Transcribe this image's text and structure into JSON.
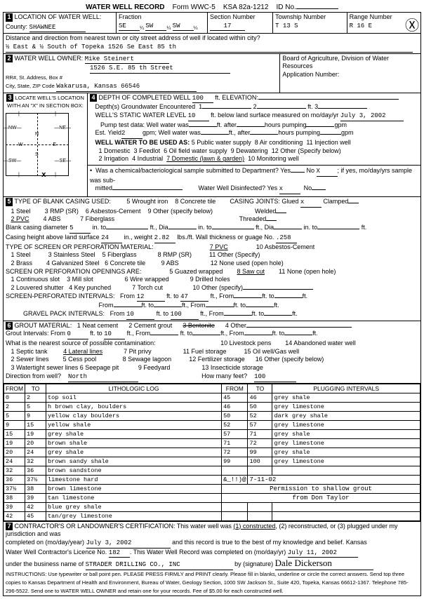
{
  "header": {
    "title": "WATER WELL RECORD",
    "form": "Form WWC-5",
    "ksa": "KSA 82a-1212",
    "idno": "ID No."
  },
  "loc": {
    "label": "LOCATION OF WATER WELL:",
    "county_lbl": "County:",
    "county": "SHAWNEE",
    "fraction_lbl": "Fraction",
    "fr1": "SE",
    "fr2": "SW",
    "fr3": "SW",
    "section_lbl": "Section Number",
    "section": "17",
    "township_lbl": "Township Number",
    "township": "T 13 S",
    "range_lbl": "Range Number",
    "range": "R 16 E",
    "dist_lbl": "Distance and direction from nearest town or city street address of well if located within city?",
    "dist": "½ East & ½ South of Topeka   1526  Se East  85 th"
  },
  "owner": {
    "label": "WATER WELL OWNER:",
    "name": "Mike Steinert",
    "addr1": "1526 S.E. 85 th Street",
    "addr2": "Wakarusa, Kansas  66546",
    "rr_lbl": "RR#, St. Address, Box #",
    "city_lbl": "City, State, ZIP Code",
    "board_lbl": "Board of Agriculture, Division of Water Resources",
    "app_lbl": "Application Number:"
  },
  "locate": {
    "label": "LOCATE WELL'S LOCATION WITH AN \"X\" IN SECTION BOX:"
  },
  "depth": {
    "label": "DEPTH OF COMPLETED WELL",
    "val": "100",
    "elev_lbl": "ft. ELEVATION:",
    "groundwater": "Depth(s) Groundwater Encountered",
    "g1": "1",
    "g2": "2",
    "g3": "ft. 3",
    "static_lbl": "WELL'S STATIC WATER LEVEL",
    "static": "10",
    "static_after": "ft. below land surface measured on mo/day/yr",
    "static_date": "July 3, 2002",
    "pump_lbl": "Pump test data: Well water was",
    "pump_after": "ft. after",
    "pump_hours": "hours pumping",
    "pump_gpm": "gpm",
    "est_lbl": "Est. Yield",
    "est": "2",
    "est_after": "gpm; Well water was",
    "est_ft": "ft., after",
    "est_hours": "hours pumping",
    "est_gpm": "gpm",
    "used_lbl": "WELL WATER TO BE USED AS:",
    "u1": "1 Domestic",
    "u3": "3 Feedlot",
    "u5": "5 Public water supply",
    "u8": "8 Air conditioning",
    "u11": "11 Injection well",
    "u2": "2 Irrigation",
    "u4": "4 Industrial",
    "u6": "6 Oil field water supply",
    "u9": "9 Dewatering",
    "u12": "12 Other (Specify below)",
    "u7": "7 Domestic (lawn & garden)",
    "u10": "10 Monitoring well",
    "chem_lbl": "Was a chemical/bacteriological sample submitted to Department? Yes",
    "chem_no": "No",
    "chem_x": "X",
    "chem_after": "; if yes, mo/day/yrs sample was sub-",
    "chem_mitted": "mitted",
    "disinfect": "Water Well Disinfected?  Yes",
    "dis_x": "x",
    "dis_no": "No"
  },
  "casing": {
    "label": "TYPE OF BLANK CASING USED:",
    "c1": "1 Steel",
    "c2": "2 PVC",
    "c3": "3 RMP (SR)",
    "c4": "4 ABS",
    "c5": "5 Wrought iron",
    "c6": "6 Asbestos-Cement",
    "c7": "7 Fiberglass",
    "c8": "8 Concrete tile",
    "c9": "9 Other (specify below)",
    "joints_lbl": "CASING JOINTS: Glued",
    "jx": "x",
    "jclamped": "Clamped",
    "jwelded": "Welded",
    "jthreaded": "Threaded",
    "dia_lbl": "Blank casing diameter",
    "dia": "5",
    "dia_in": "in. to",
    "dia_ft": "ft., Dia",
    "dia_into": "in. to",
    "dia_ft2": "ft.",
    "height_lbl": "Casing height above land surface",
    "height": "24",
    "height_wt": "in., weight",
    "wt": "2.82",
    "wt_lbs": "lbs./ft. Wall thickness or guage No.",
    "guage": ".258",
    "screen_lbl": "TYPE OF SCREEN OR PERFORATION MATERIAL:",
    "s1": "1 Steel",
    "s2": "2 Brass",
    "s3": "3 Stainless Steel",
    "s4": "4 Galvanized Steel",
    "s5": "5 Fiberglass",
    "s6": "6 Concrete tile",
    "s7": "7 PVC",
    "s8": "8 RMP (SR)",
    "s9": "9 ABS",
    "s10": "10 Asbestos-Cement",
    "s11": "11 Other (Specify)",
    "s12": "12 None used (open hole)",
    "open_lbl": "SCREEN OR PERFORATION OPENINGS ARE:",
    "o1": "1 Continuous slot",
    "o2": "2 Louvered shutter",
    "o3": "3 Mill slot",
    "o4": "4 Key punched",
    "o5": "5 Guazed wrapped",
    "o6": "6 Wire wrapped",
    "o7": "7 Torch cut",
    "o8": "8 Saw cut",
    "o9": "9 Drilled holes",
    "o10": "10 Other (specify)",
    "o11": "11 None (open hole)",
    "perf_lbl": "SCREEN-PERFORATED INTERVALS:",
    "from_lbl": "From",
    "to_lbl": "to",
    "ft_lbl": "ft., From",
    "ft_to": "ft.  to",
    "ft_end": "ft.",
    "perf_from": "12",
    "perf_to": "47",
    "gravel_lbl": "GRAVEL PACK INTERVALS:",
    "gravel_from": "10",
    "gravel_to": "100"
  },
  "grout": {
    "label": "GROUT MATERIAL:",
    "g1": "1 Neat cement",
    "g2": "2 Cement grout",
    "g3": "3 Bentonite",
    "g4": "4 Other",
    "int_lbl": "Grout Intervals:   From",
    "int_from": "0",
    "int_to": "10",
    "int_ft": "ft. to",
    "int_from2": "ft., From",
    "int_ft2": "ft.",
    "contam_lbl": "What is the nearest source of possible contamination:",
    "p1": "1 Septic tank",
    "p2": "2 Sewer lines",
    "p3": "3 Watertight sewer lines",
    "p4": "4 Lateral lines",
    "p5": "5 Cess pool",
    "p6": "6 Seepage pit",
    "p7": "7 Pit privy",
    "p8": "8 Sewage lagoon",
    "p9": "9 Feedyard",
    "p10": "10 Livestock pens",
    "p11": "11 Fuel storage",
    "p12": "12 Fertilizer storage",
    "p13": "13 Insecticide storage",
    "p14": "14 Abandoned water well",
    "p15": "15 Oil well/Gas well",
    "p16": "16 Other (specify below)",
    "dir_lbl": "Direction from well?",
    "dir": "North",
    "howmany_lbl": "How many feet?",
    "howmany": "100"
  },
  "log": {
    "h_from": "FROM",
    "h_to": "TO",
    "h_lith": "LITHOLOGIC LOG",
    "h_from2": "FROM",
    "h_to2": "TO",
    "h_plug": "PLUGGING INTERVALS",
    "rows": [
      [
        "0",
        "2",
        "top soil",
        "45",
        "46",
        "grey shale"
      ],
      [
        "2",
        "5",
        "h brown clay, boulders",
        "46",
        "50",
        "grey limestone"
      ],
      [
        "5",
        "9",
        "yellow clay boulders",
        "50",
        "52",
        "dark grey shale"
      ],
      [
        "9",
        "15",
        "yellow shale",
        "52",
        "57",
        "grey limestone"
      ],
      [
        "15",
        "19",
        "grey shale",
        "57",
        "71",
        "grey shale"
      ],
      [
        "19",
        "20",
        "brown shale",
        "71",
        "72",
        "grey limestone"
      ],
      [
        "20",
        "24",
        "grey shale",
        "72",
        "99",
        "grey shale"
      ],
      [
        "24",
        "32",
        "brown sandy shale",
        "99",
        "100",
        "grey limestone"
      ],
      [
        "32",
        "36",
        "brown sandstone",
        "",
        "",
        ""
      ],
      [
        "36",
        "37½",
        "limestone hard",
        "&_!!)@",
        "7-11-02",
        ""
      ],
      [
        "37½",
        "38",
        "brown limestone",
        "",
        "Permission to shallow grout",
        ""
      ],
      [
        "38",
        "39",
        "tan limestone",
        "",
        "from Don Taylor",
        ""
      ],
      [
        "39",
        "42",
        "blue grey shale",
        "",
        "",
        ""
      ],
      [
        "42",
        "45",
        "tan/grey limestone",
        "",
        "",
        ""
      ]
    ]
  },
  "cert": {
    "label": "CONTRACTOR'S OR LANDOWNER'S CERTIFICATION: This water well was",
    "c1": "(1) constructed",
    "c2": "(2) reconstructed, or (3) plugged under my jurisdiction and was",
    "completed_lbl": "completed on (mo/day/year)",
    "completed": "July 3, 2002",
    "true_lbl": "and this record is true to the best of my knowledge and belief. Kansas",
    "lic_lbl": "Water Well Contractor's Licence No.",
    "lic": "182",
    "rec_lbl": "This Water Well Record was completed on (mo/day/yr)",
    "rec": "July 11, 2002",
    "bus_lbl": "under the business name of",
    "bus": "STRADER DRILLING CO., INC",
    "by_lbl": "by (signature)",
    "sig": "Dale Dickerson",
    "instr": "INSTRUCTIONS: Use typewriter or ball point pen. PLEASE PRESS FIRMLY and PRINT clearly. Please fill in blanks, underline or circle the correct answers. Send top three copies to Kansas Department of Health and Environment, Bureau of Water, Geology Section, 1000 SW Jackson St., Suite 420, Topeka, Kansas 66612-1367. Telephone 785-296-5522. Send one to WATER WELL OWNER and retain one for your records. Fee of $5.00 for each constructed well."
  }
}
